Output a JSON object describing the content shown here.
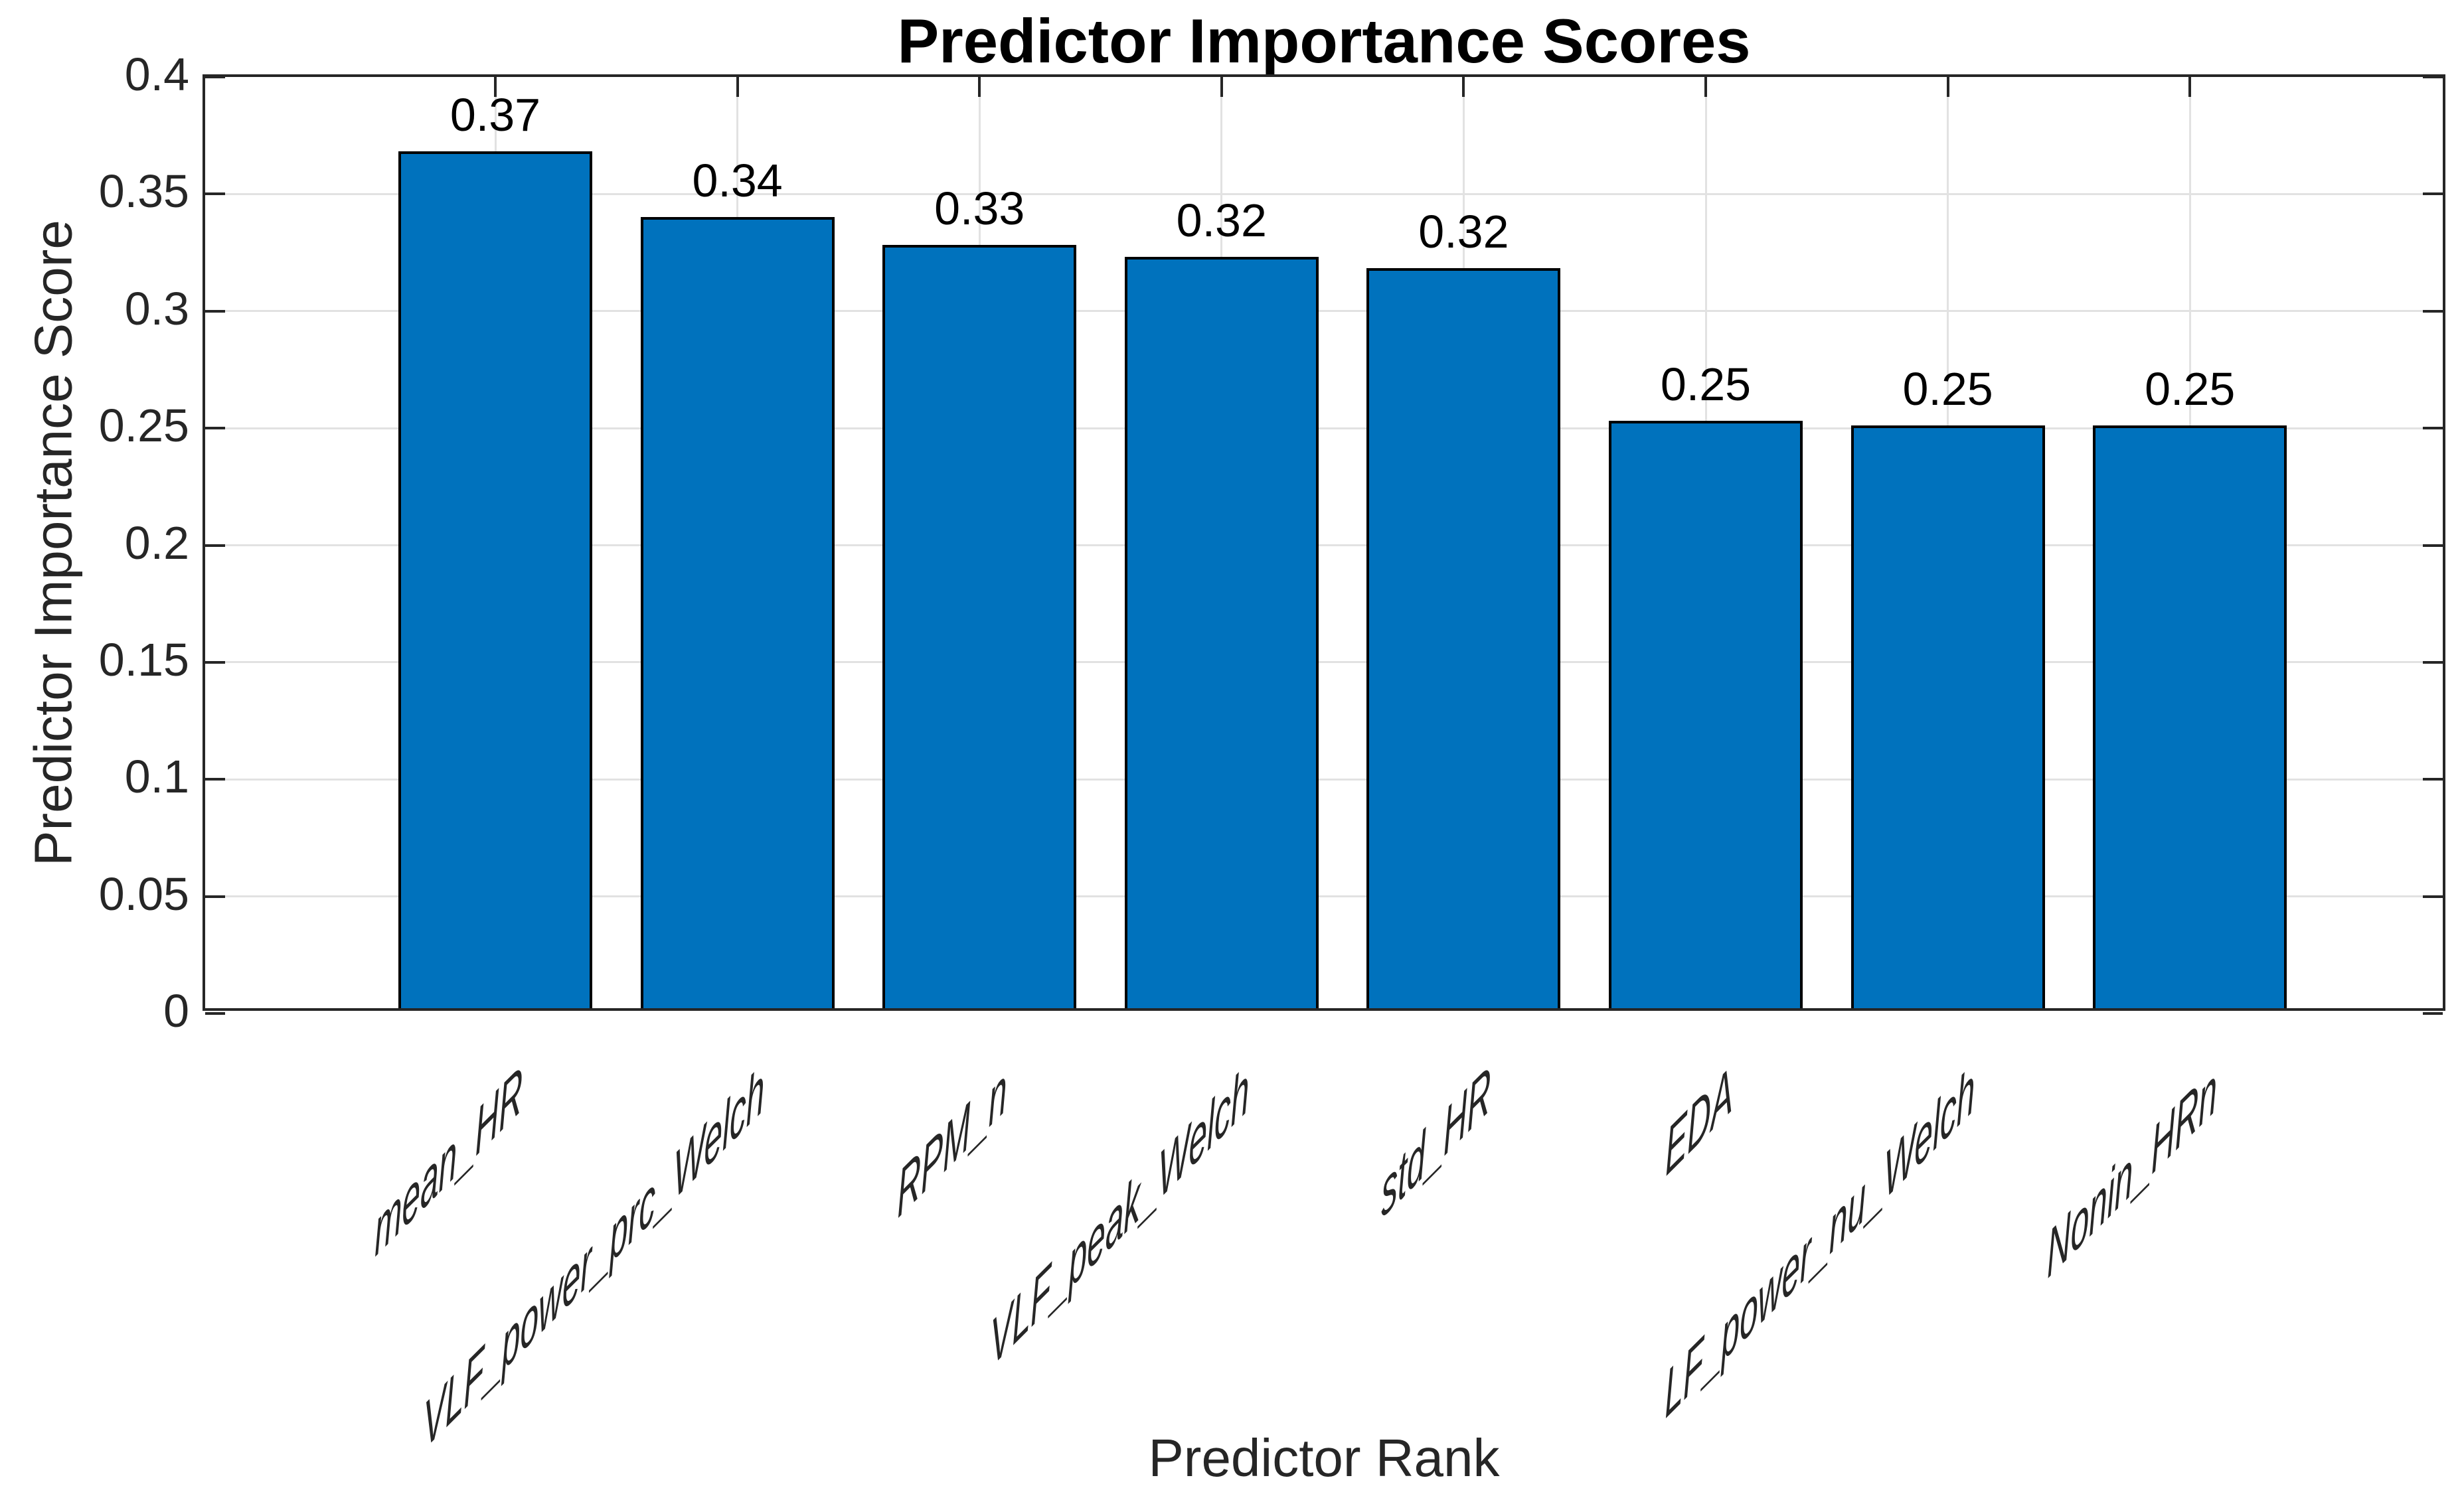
{
  "figure": {
    "background": "#ffffff"
  },
  "chart_data": {
    "type": "bar",
    "title": "Predictor Importance Scores",
    "xlabel": "Predictor Rank",
    "ylabel": "Predictor Importance Score",
    "categories": [
      "mean_HR",
      "VLF_power_prc_Welch",
      "RPM_n",
      "VLF_peak_Welch",
      "std_HR",
      "EDA",
      "LF_power_nu_Welch",
      "Nonin_HRn"
    ],
    "values": [
      0.366,
      0.338,
      0.326,
      0.321,
      0.316,
      0.251,
      0.249,
      0.249
    ],
    "bar_labels": [
      "0.37",
      "0.34",
      "0.33",
      "0.32",
      "0.32",
      "0.25",
      "0.25",
      "0.25"
    ],
    "ylim": [
      0,
      0.4
    ],
    "yticks": [
      0,
      0.05,
      0.1,
      0.15,
      0.2,
      0.25,
      0.3,
      0.35,
      0.4
    ],
    "ytick_labels": [
      "0",
      "0.05",
      "0.1",
      "0.15",
      "0.2",
      "0.25",
      "0.3",
      "0.35",
      "0.4"
    ],
    "grid": true,
    "legend": false,
    "bar_color": "#0072BD",
    "bar_edge_color": "#000000",
    "axis_color": "#262626",
    "grid_color": "#e2e2e2",
    "title_color": "#000000"
  }
}
